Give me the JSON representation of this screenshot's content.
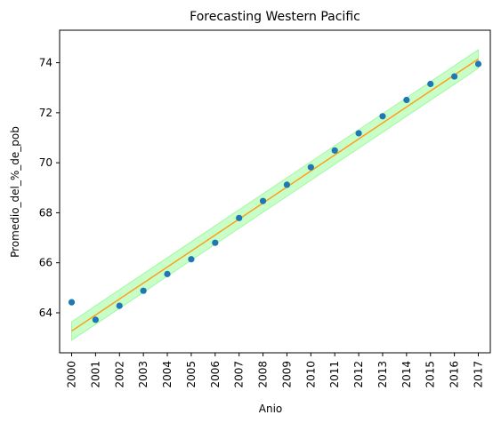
{
  "chart_data": {
    "type": "scatter",
    "title": "Forecasting Western Pacific",
    "xlabel": "Anio",
    "ylabel": "Promedio_del_%_de_pob",
    "categories": [
      "2000",
      "2001",
      "2002",
      "2003",
      "2004",
      "2005",
      "2006",
      "2007",
      "2008",
      "2009",
      "2010",
      "2011",
      "2012",
      "2013",
      "2014",
      "2015",
      "2016",
      "2017"
    ],
    "ylim": [
      62.4,
      75.3
    ],
    "yticks": [
      64,
      66,
      68,
      70,
      72,
      74
    ],
    "grid": false,
    "series": [
      {
        "kind": "scatter",
        "values": [
          64.42,
          63.72,
          64.28,
          64.88,
          65.55,
          66.14,
          66.8,
          67.79,
          68.47,
          69.12,
          69.82,
          70.49,
          71.18,
          71.86,
          72.51,
          73.15,
          73.45,
          73.95
        ]
      },
      {
        "kind": "line",
        "values": [
          63.27,
          63.91,
          64.55,
          65.19,
          65.83,
          66.47,
          67.11,
          67.75,
          68.39,
          69.03,
          69.67,
          70.31,
          70.95,
          71.59,
          72.23,
          72.87,
          73.51,
          74.15
        ]
      },
      {
        "kind": "band",
        "lower": [
          62.9,
          63.54,
          64.18,
          64.82,
          65.46,
          66.1,
          66.74,
          67.38,
          68.02,
          68.66,
          69.3,
          69.94,
          70.58,
          71.22,
          71.86,
          72.5,
          73.14,
          73.78
        ],
        "upper": [
          63.64,
          64.28,
          64.92,
          65.56,
          66.2,
          66.84,
          67.48,
          68.12,
          68.76,
          69.4,
          70.04,
          70.68,
          71.32,
          71.96,
          72.6,
          73.24,
          73.88,
          74.52
        ]
      }
    ],
    "colors": {
      "points": "#1f77b4",
      "line": "#ff9e1b",
      "band_fill": "#c8ffc8",
      "band_edge": "#a6f5a6"
    }
  }
}
